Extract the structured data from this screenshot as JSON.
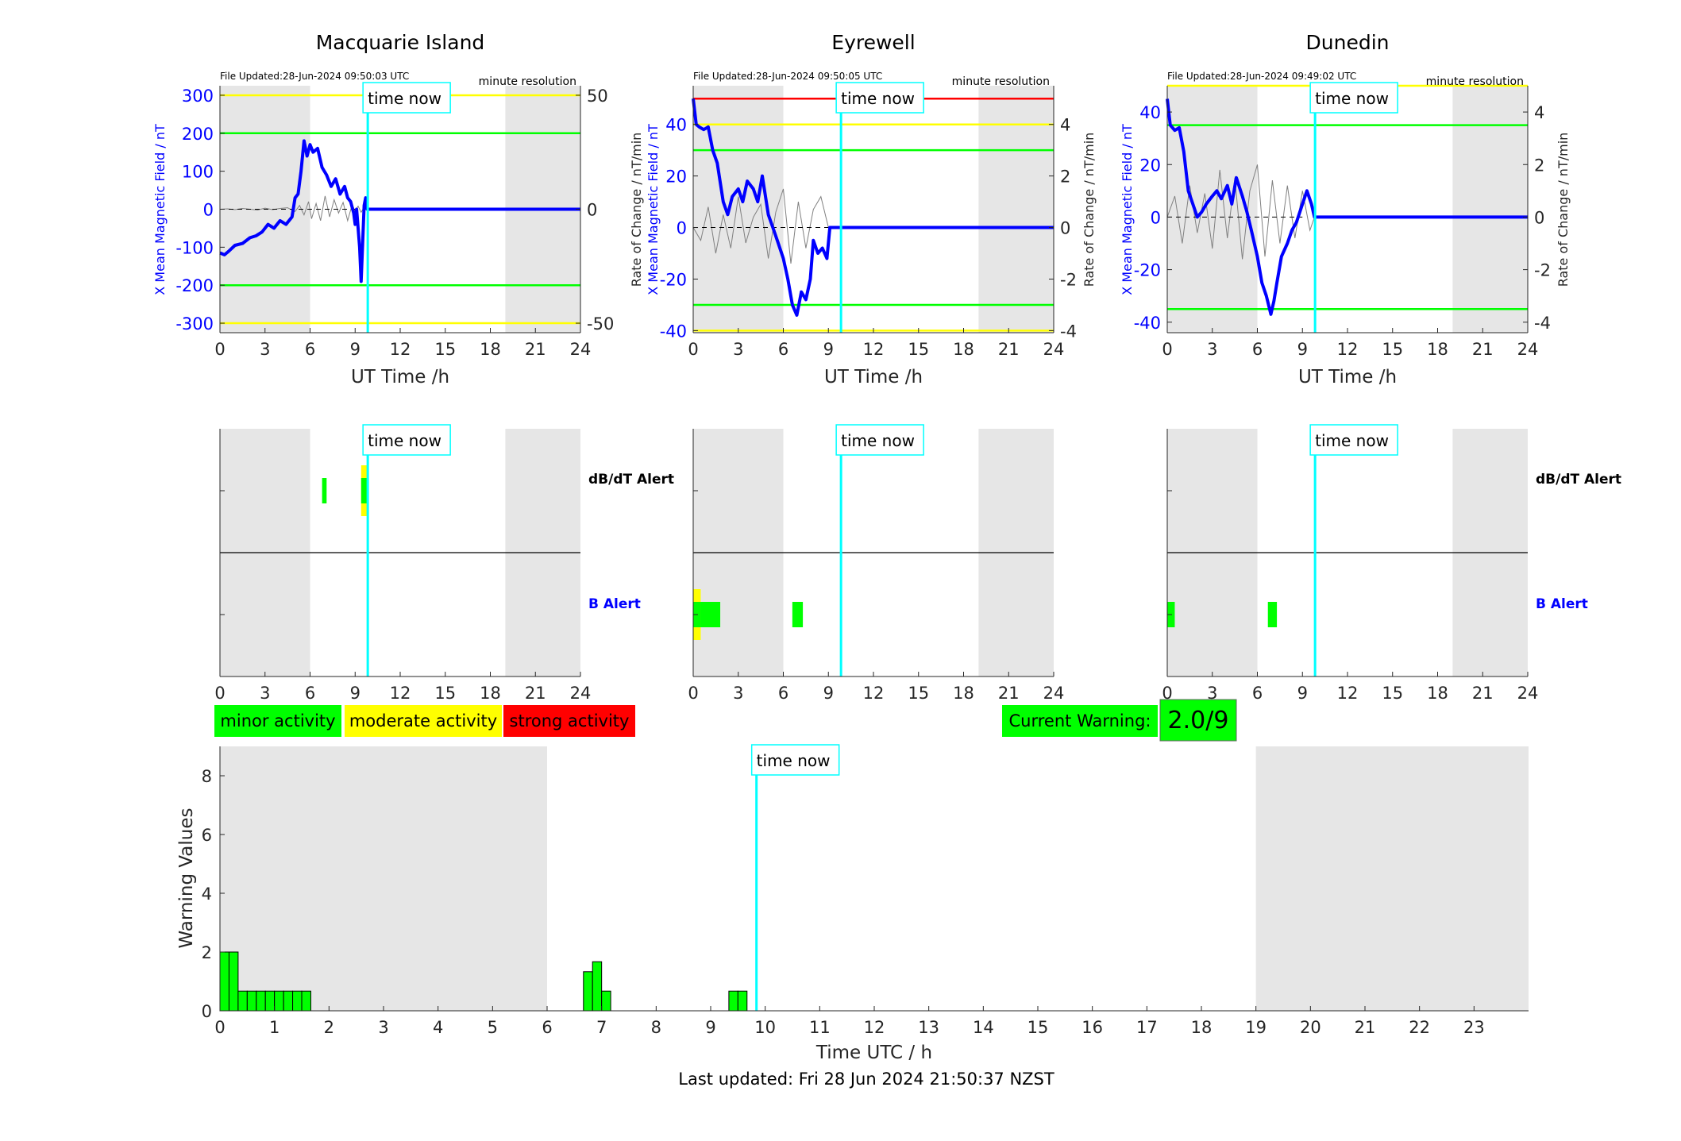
{
  "footer": "Last updated: Fri 28 Jun 2024 21:50:37 NZST",
  "time_now_label": "time now",
  "legend": [
    {
      "label": "minor activity",
      "color": "#00ff00"
    },
    {
      "label": "moderate activity",
      "color": "#ffff00"
    },
    {
      "label": "strong activity",
      "color": "#ff0000"
    }
  ],
  "current_warning": {
    "label": "Current Warning:",
    "value": "2.0/9"
  },
  "time_now_hour": 9.84,
  "colors": {
    "grey_band": "#e6e6e6",
    "time_now": "#00ffff",
    "mag_line": "#0000ff",
    "rate_line": "#808080",
    "green": "#00ff00",
    "yellow": "#ffff00",
    "red": "#ff0000"
  },
  "chart_data": [
    {
      "type": "line",
      "station": "Macquarie Island",
      "file_updated": "File Updated:28-Jun-2024 09:50:03 UTC",
      "resolution": "minute resolution",
      "xlabel": "UT Time /h",
      "ylabel_left": "X Mean Magnetic Field / nT",
      "ylabel_right": "",
      "xlim": [
        0,
        24
      ],
      "xticks": [
        0,
        3,
        6,
        9,
        12,
        15,
        18,
        21,
        24
      ],
      "ylim": [
        -325,
        325
      ],
      "yticks": [
        -300,
        -200,
        -100,
        0,
        100,
        200,
        300
      ],
      "ytick_labels": [
        "-300",
        "-200",
        "-100",
        "0",
        "100",
        "200",
        "300"
      ],
      "right_ticks_pos": [
        -300,
        0,
        300
      ],
      "right_tick_labels": [
        "-50",
        "0",
        "50"
      ],
      "grey_bands": [
        [
          0,
          6
        ],
        [
          19,
          24
        ]
      ],
      "threshold_lines": [
        {
          "value": 300,
          "color": "#ffff00"
        },
        {
          "value": 200,
          "color": "#00ff00"
        },
        {
          "value": -200,
          "color": "#00ff00"
        },
        {
          "value": -300,
          "color": "#ffff00"
        }
      ],
      "magnetic_field": {
        "x": [
          0,
          0.3,
          0.6,
          1,
          1.5,
          2,
          2.4,
          2.8,
          3.2,
          3.6,
          4,
          4.4,
          4.8,
          5,
          5.2,
          5.4,
          5.6,
          5.8,
          6,
          6.2,
          6.5,
          6.8,
          7.1,
          7.4,
          7.7,
          8,
          8.3,
          8.5,
          8.7,
          8.9,
          9,
          9.1,
          9.2,
          9.3,
          9.4,
          9.5,
          9.6,
          9.7,
          9.8,
          10,
          24
        ],
        "y": [
          -115,
          -120,
          -110,
          -95,
          -90,
          -75,
          -70,
          -60,
          -40,
          -50,
          -30,
          -40,
          -20,
          30,
          40,
          100,
          180,
          140,
          170,
          150,
          160,
          110,
          90,
          60,
          80,
          40,
          60,
          30,
          20,
          -10,
          -40,
          0,
          -50,
          -100,
          -190,
          -90,
          10,
          30,
          0,
          0,
          0
        ]
      },
      "rate_of_change": {
        "x": [
          0,
          0.5,
          1,
          1.5,
          2,
          2.5,
          3,
          3.5,
          4,
          4.5,
          5,
          5.3,
          5.6,
          5.9,
          6.1,
          6.4,
          6.7,
          7,
          7.3,
          7.6,
          7.9,
          8.2,
          8.5,
          8.8,
          9,
          9.2,
          9.4,
          9.6,
          9.8
        ],
        "y": [
          0,
          1,
          -1,
          2,
          0,
          -2,
          3,
          -1,
          2,
          4,
          -6,
          10,
          -15,
          20,
          -25,
          15,
          -30,
          35,
          -20,
          25,
          -10,
          18,
          -30,
          12,
          -5,
          8,
          -8,
          5,
          0
        ]
      },
      "alerts": {
        "dbdt_label": "dB/dT Alert",
        "b_label": "B Alert",
        "dbdt": [
          {
            "x0": 6.8,
            "x1": 7.1,
            "level": "minor"
          },
          {
            "x0": 9.4,
            "x1": 9.8,
            "level": "moderate",
            "inner": "minor"
          }
        ],
        "b": []
      }
    },
    {
      "type": "line",
      "station": "Eyrewell",
      "file_updated": "File Updated:28-Jun-2024 09:50:05 UTC",
      "resolution": "minute resolution",
      "xlabel": "UT Time /h",
      "ylabel_left": "X Mean Magnetic Field / nT",
      "ylabel_right": "Rate of Change / nT/min",
      "ylabel_left_outer": "Rate of Change / nT/min",
      "xlim": [
        0,
        24
      ],
      "xticks": [
        0,
        3,
        6,
        9,
        12,
        15,
        18,
        21,
        24
      ],
      "ylim": [
        -40.8,
        55
      ],
      "yticks": [
        -40,
        -20,
        0,
        20,
        40
      ],
      "ytick_labels": [
        "-40",
        "-20",
        "0",
        "20",
        "40"
      ],
      "right_ticks_pos": [
        -40,
        -20,
        0,
        20,
        40
      ],
      "right_tick_labels": [
        "-4",
        "-2",
        "0",
        "2",
        "4"
      ],
      "grey_bands": [
        [
          0,
          6
        ],
        [
          19,
          24
        ]
      ],
      "threshold_lines": [
        {
          "value": 50,
          "color": "#ff0000"
        },
        {
          "value": 40,
          "color": "#ffff00"
        },
        {
          "value": 30,
          "color": "#00ff00"
        },
        {
          "value": -30,
          "color": "#00ff00"
        },
        {
          "value": -40,
          "color": "#ffff00"
        }
      ],
      "magnetic_field": {
        "x": [
          0,
          0.2,
          0.4,
          0.7,
          1,
          1.3,
          1.6,
          2,
          2.3,
          2.6,
          3,
          3.3,
          3.6,
          4,
          4.3,
          4.6,
          5,
          5.3,
          5.6,
          6,
          6.3,
          6.6,
          6.9,
          7.2,
          7.5,
          7.8,
          8,
          8.3,
          8.6,
          8.9,
          9.1,
          9.3,
          9.5,
          24
        ],
        "y": [
          50,
          40,
          39,
          38,
          39,
          30,
          25,
          10,
          5,
          12,
          15,
          10,
          18,
          15,
          10,
          20,
          5,
          0,
          -5,
          -12,
          -20,
          -30,
          -34,
          -25,
          -28,
          -20,
          -5,
          -10,
          -8,
          -12,
          0,
          0,
          0,
          0
        ]
      },
      "rate_of_change": {
        "x": [
          0,
          0.5,
          1,
          1.5,
          2,
          2.5,
          3,
          3.5,
          4,
          4.5,
          5,
          5.5,
          6,
          6.5,
          7,
          7.5,
          8,
          8.5,
          9
        ],
        "y": [
          0,
          -5,
          8,
          -10,
          5,
          -8,
          12,
          -6,
          4,
          9,
          -12,
          6,
          15,
          -14,
          10,
          -8,
          7,
          12,
          0
        ]
      },
      "alerts": {
        "dbdt_label": "",
        "b_label": "",
        "dbdt": [],
        "b": [
          {
            "x0": 0,
            "x1": 0.5,
            "level": "moderate",
            "inner": "minor"
          },
          {
            "x0": 0.5,
            "x1": 1.8,
            "level": "minor"
          },
          {
            "x0": 6.6,
            "x1": 7.3,
            "level": "minor"
          }
        ]
      }
    },
    {
      "type": "line",
      "station": "Dunedin",
      "file_updated": "File Updated:28-Jun-2024 09:49:02 UTC",
      "resolution": "minute resolution",
      "xlabel": "UT Time /h",
      "ylabel_left": "X Mean Magnetic Field / nT",
      "ylabel_right": "Rate of Change / nT/min",
      "xlim": [
        0,
        24
      ],
      "xticks": [
        0,
        3,
        6,
        9,
        12,
        15,
        18,
        21,
        24
      ],
      "ylim": [
        -44,
        50
      ],
      "yticks": [
        -40,
        -20,
        0,
        20,
        40
      ],
      "ytick_labels": [
        "-40",
        "-20",
        "0",
        "20",
        "40"
      ],
      "right_ticks_pos": [
        -40,
        -20,
        0,
        20,
        40
      ],
      "right_tick_labels": [
        "-4",
        "-2",
        "0",
        "2",
        "4"
      ],
      "grey_bands": [
        [
          0,
          6
        ],
        [
          19,
          24
        ]
      ],
      "threshold_lines": [
        {
          "value": 50,
          "color": "#ffff00"
        },
        {
          "value": 35,
          "color": "#00ff00"
        },
        {
          "value": -35,
          "color": "#00ff00"
        }
      ],
      "magnetic_field": {
        "x": [
          0,
          0.2,
          0.5,
          0.8,
          1.1,
          1.4,
          1.7,
          2,
          2.3,
          2.6,
          3,
          3.3,
          3.6,
          4,
          4.3,
          4.6,
          5,
          5.3,
          5.6,
          6,
          6.3,
          6.6,
          6.9,
          7.1,
          7.3,
          7.6,
          8,
          8.3,
          8.6,
          9,
          9.3,
          9.6,
          9.8,
          24
        ],
        "y": [
          45,
          35,
          33,
          34,
          25,
          10,
          5,
          0,
          2,
          5,
          8,
          10,
          7,
          12,
          5,
          15,
          8,
          2,
          -5,
          -15,
          -25,
          -30,
          -37,
          -32,
          -25,
          -15,
          -10,
          -5,
          -2,
          5,
          10,
          5,
          0,
          0
        ]
      },
      "rate_of_change": {
        "x": [
          0,
          0.5,
          1,
          1.5,
          2,
          2.5,
          3,
          3.5,
          4,
          4.5,
          5,
          5.5,
          6,
          6.5,
          7,
          7.5,
          8,
          8.5,
          9,
          9.5,
          9.8
        ],
        "y": [
          0,
          8,
          -10,
          12,
          -6,
          9,
          -12,
          18,
          -8,
          15,
          -16,
          10,
          20,
          -15,
          14,
          -10,
          12,
          -8,
          10,
          -5,
          0
        ]
      },
      "alerts": {
        "dbdt_label": "dB/dT Alert",
        "b_label": "B Alert",
        "dbdt": [],
        "b": [
          {
            "x0": 0,
            "x1": 0.5,
            "level": "minor"
          },
          {
            "x0": 6.7,
            "x1": 7.3,
            "level": "minor"
          }
        ]
      }
    },
    {
      "type": "bar",
      "xlabel": "Time UTC / h",
      "ylabel": "Warning Values",
      "xlim": [
        0,
        24
      ],
      "xticks": [
        0,
        1,
        2,
        3,
        4,
        5,
        6,
        7,
        8,
        9,
        10,
        11,
        12,
        13,
        14,
        15,
        16,
        17,
        18,
        19,
        20,
        21,
        22,
        23
      ],
      "ylim": [
        0,
        9
      ],
      "yticks": [
        0,
        2,
        4,
        6,
        8
      ],
      "grey_bands": [
        [
          0,
          6
        ],
        [
          19,
          24
        ]
      ],
      "bar_width": 0.1667,
      "x": [
        0.0,
        0.1667,
        0.3333,
        0.5,
        0.6667,
        0.8333,
        1.0,
        1.1667,
        1.3333,
        1.5,
        6.6667,
        6.8333,
        7.0,
        9.3333,
        9.5
      ],
      "values": [
        2.0,
        2.0,
        0.67,
        0.67,
        0.67,
        0.67,
        0.67,
        0.67,
        0.67,
        0.67,
        1.33,
        1.67,
        0.67,
        0.67,
        0.67
      ]
    }
  ]
}
